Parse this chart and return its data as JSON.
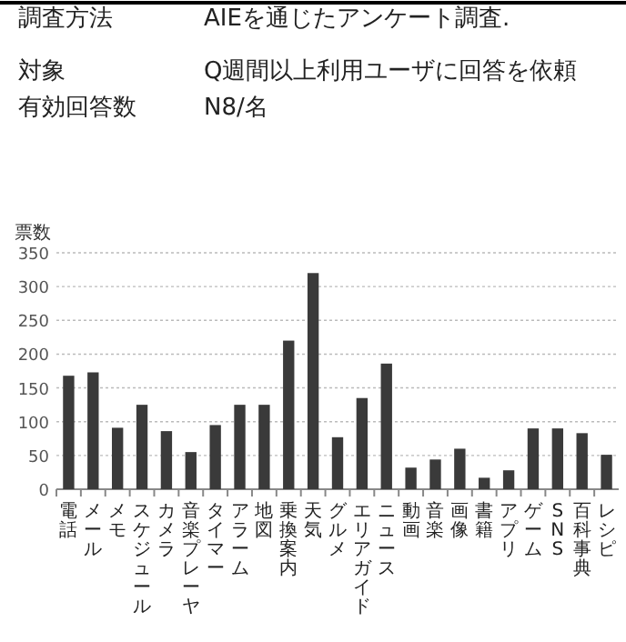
{
  "chart_data": {
    "type": "bar",
    "ylabel": "票数",
    "categories": [
      "電話",
      "メール",
      "メモ",
      "スケジュール",
      "カメラ",
      "音楽プレーヤ",
      "タイマー",
      "アラーム",
      "地図",
      "乗換案内",
      "天気",
      "グルメ",
      "エリアガイド",
      "ニュース",
      "動画",
      "音楽",
      "画像",
      "書籍",
      "アプリ",
      "ゲーム",
      "SNS",
      "百科事典",
      "レシピ"
    ],
    "values": [
      168,
      173,
      91,
      125,
      86,
      55,
      95,
      125,
      125,
      220,
      320,
      77,
      135,
      186,
      32,
      44,
      60,
      17,
      28,
      90,
      90,
      83,
      51
    ],
    "color": "#3a3a3a",
    "ylim": [
      0,
      350
    ],
    "yticks": [
      0,
      50,
      100,
      150,
      200,
      250,
      300,
      350
    ],
    "grid": "y",
    "annotations": [
      "調査方法",
      "AIEを通じたアンケート調査.",
      "対象",
      "Q週間以上利用ユーザに回答を依頼",
      "有効回答数",
      "N8/名"
    ]
  }
}
